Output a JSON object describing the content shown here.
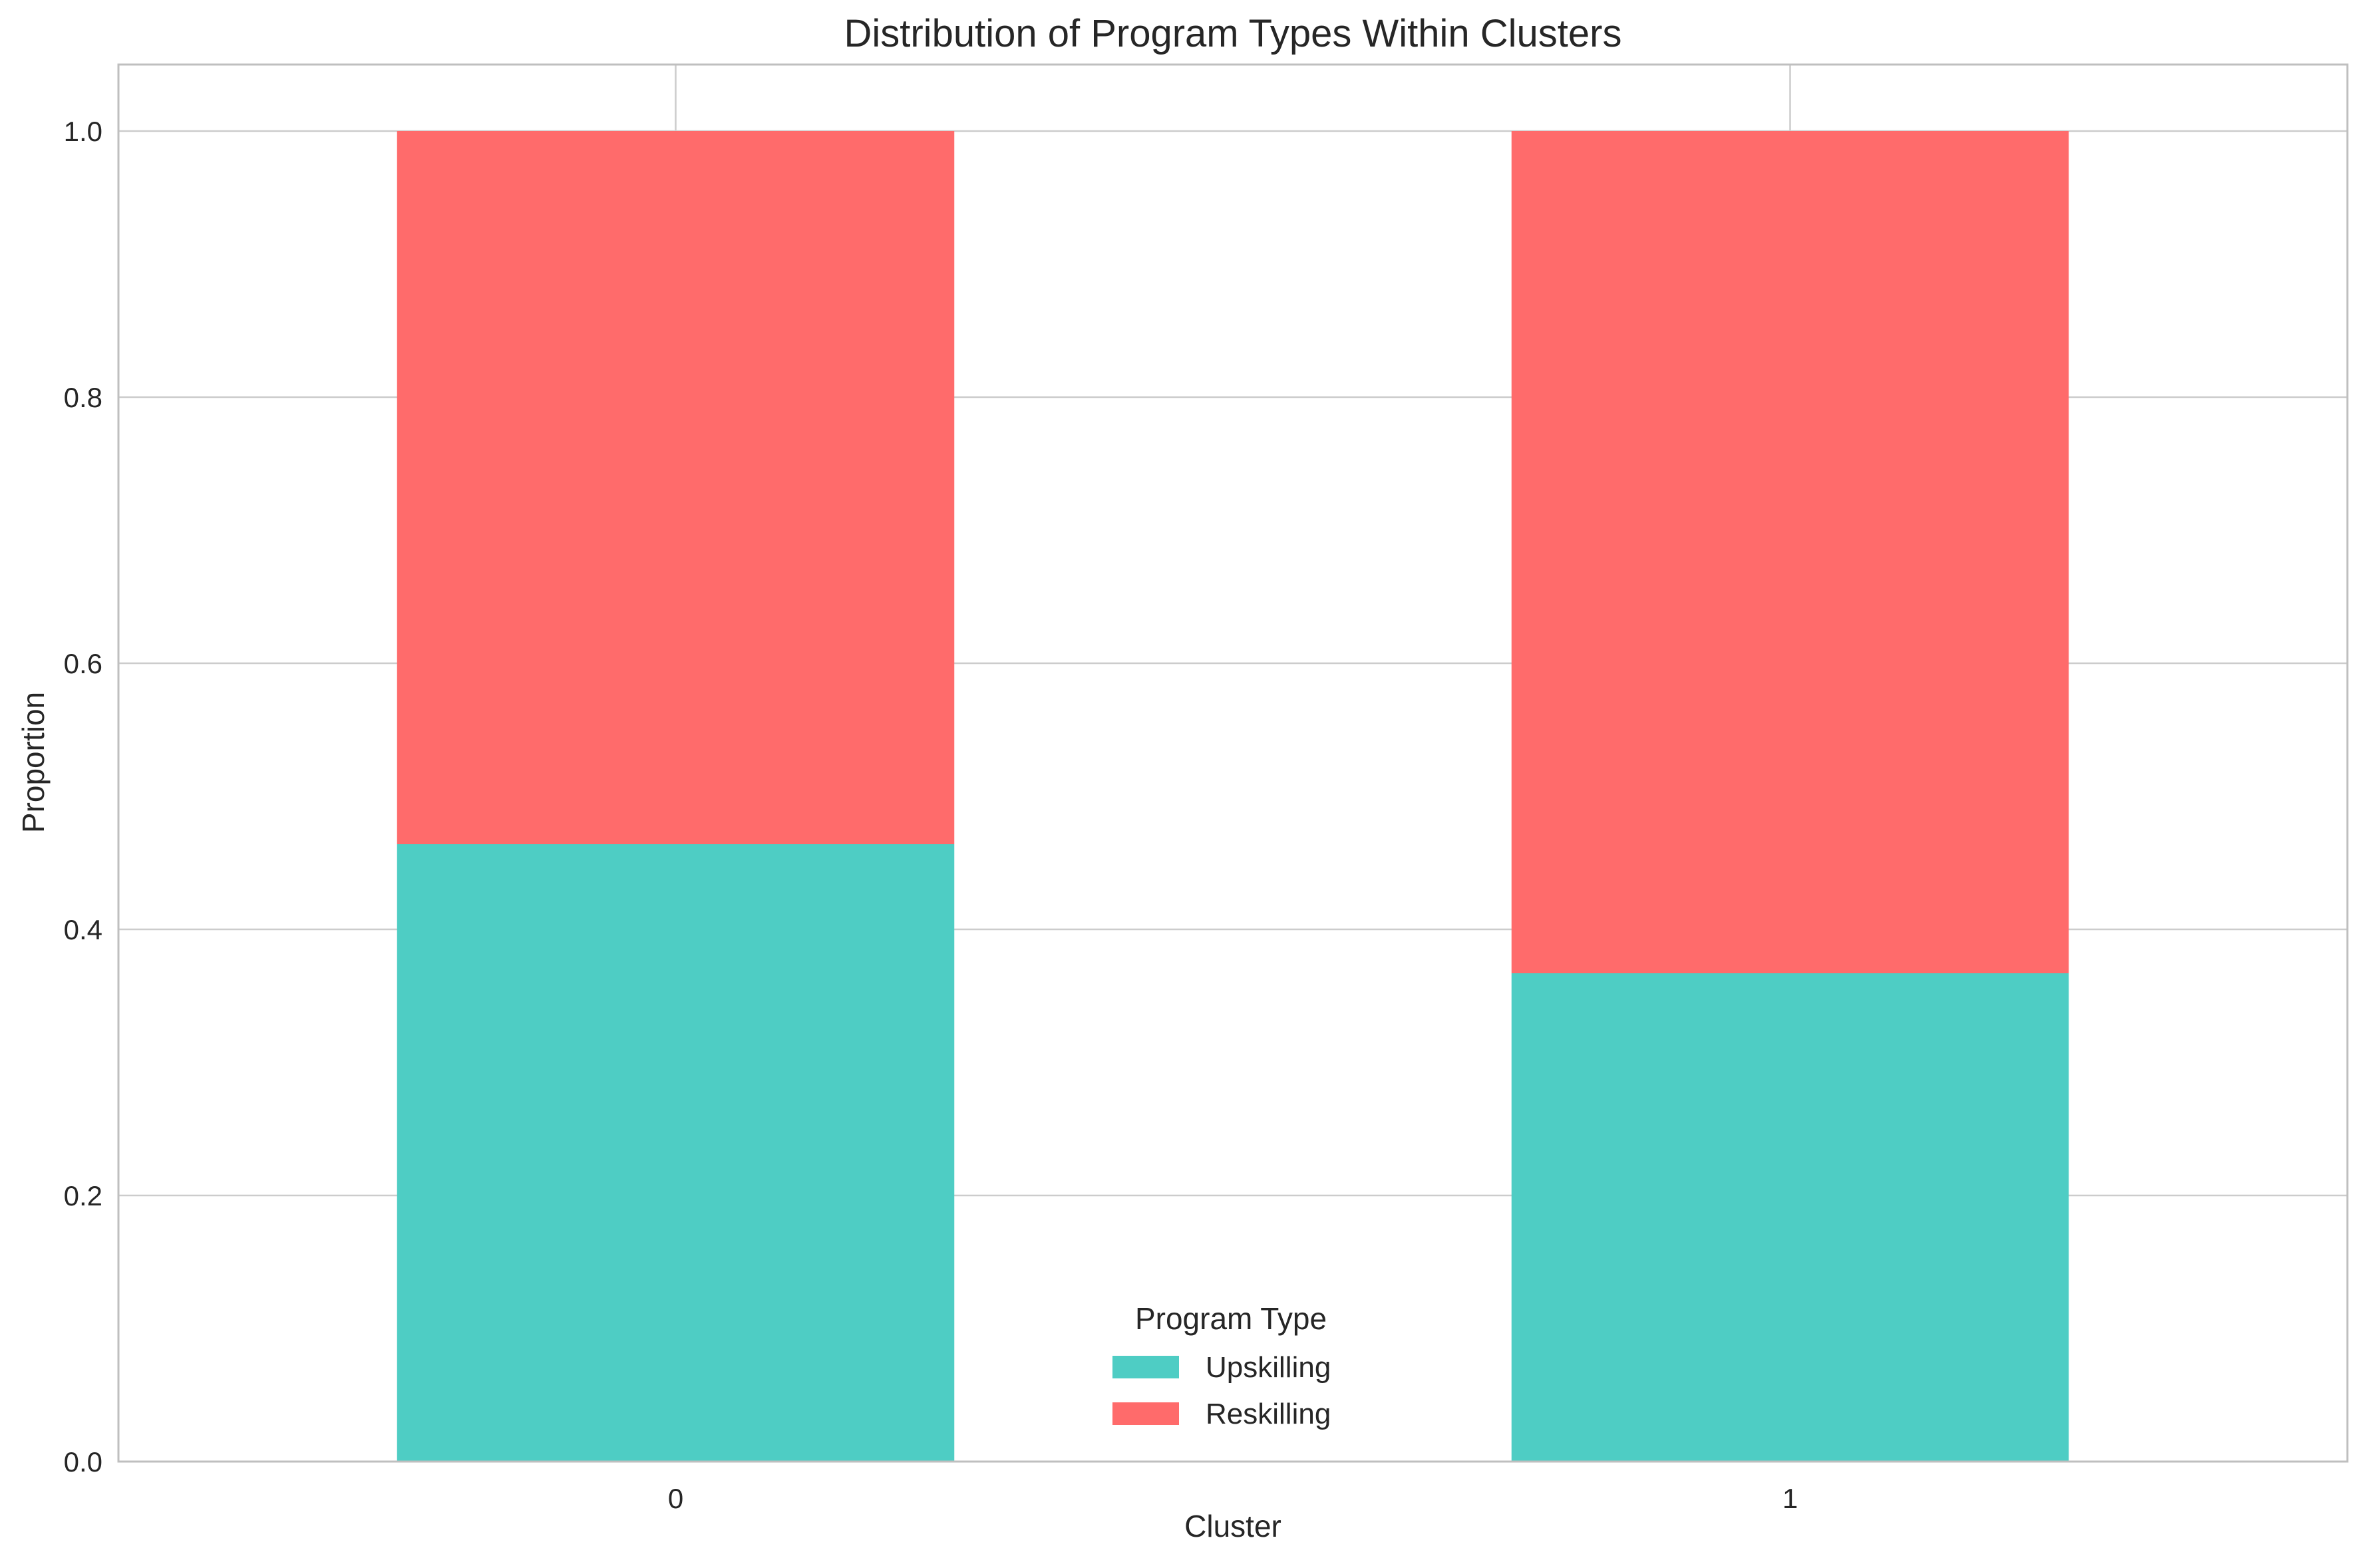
{
  "chart_data": {
    "type": "bar",
    "stacked": true,
    "title": "Distribution of Program Types Within Clusters",
    "xlabel": "Cluster",
    "ylabel": "Proportion",
    "categories": [
      "0",
      "1"
    ],
    "series": [
      {
        "name": "Upskilling",
        "values": [
          0.464,
          0.367
        ],
        "color": "#4ECDC4"
      },
      {
        "name": "Reskilling",
        "values": [
          0.536,
          0.633
        ],
        "color": "#FF6B6B"
      }
    ],
    "ylim": [
      0,
      1.05
    ],
    "yticks": [
      0.0,
      0.2,
      0.4,
      0.6,
      0.8,
      1.0
    ],
    "ytick_labels": [
      "0.0",
      "0.2",
      "0.4",
      "0.6",
      "0.8",
      "1.0"
    ],
    "grid": true,
    "legend": {
      "title": "Program Type",
      "placement": "lower-center"
    },
    "colors": {
      "grid": "#cccccc",
      "spine": "#bfbfbf",
      "text": "#262626"
    }
  }
}
